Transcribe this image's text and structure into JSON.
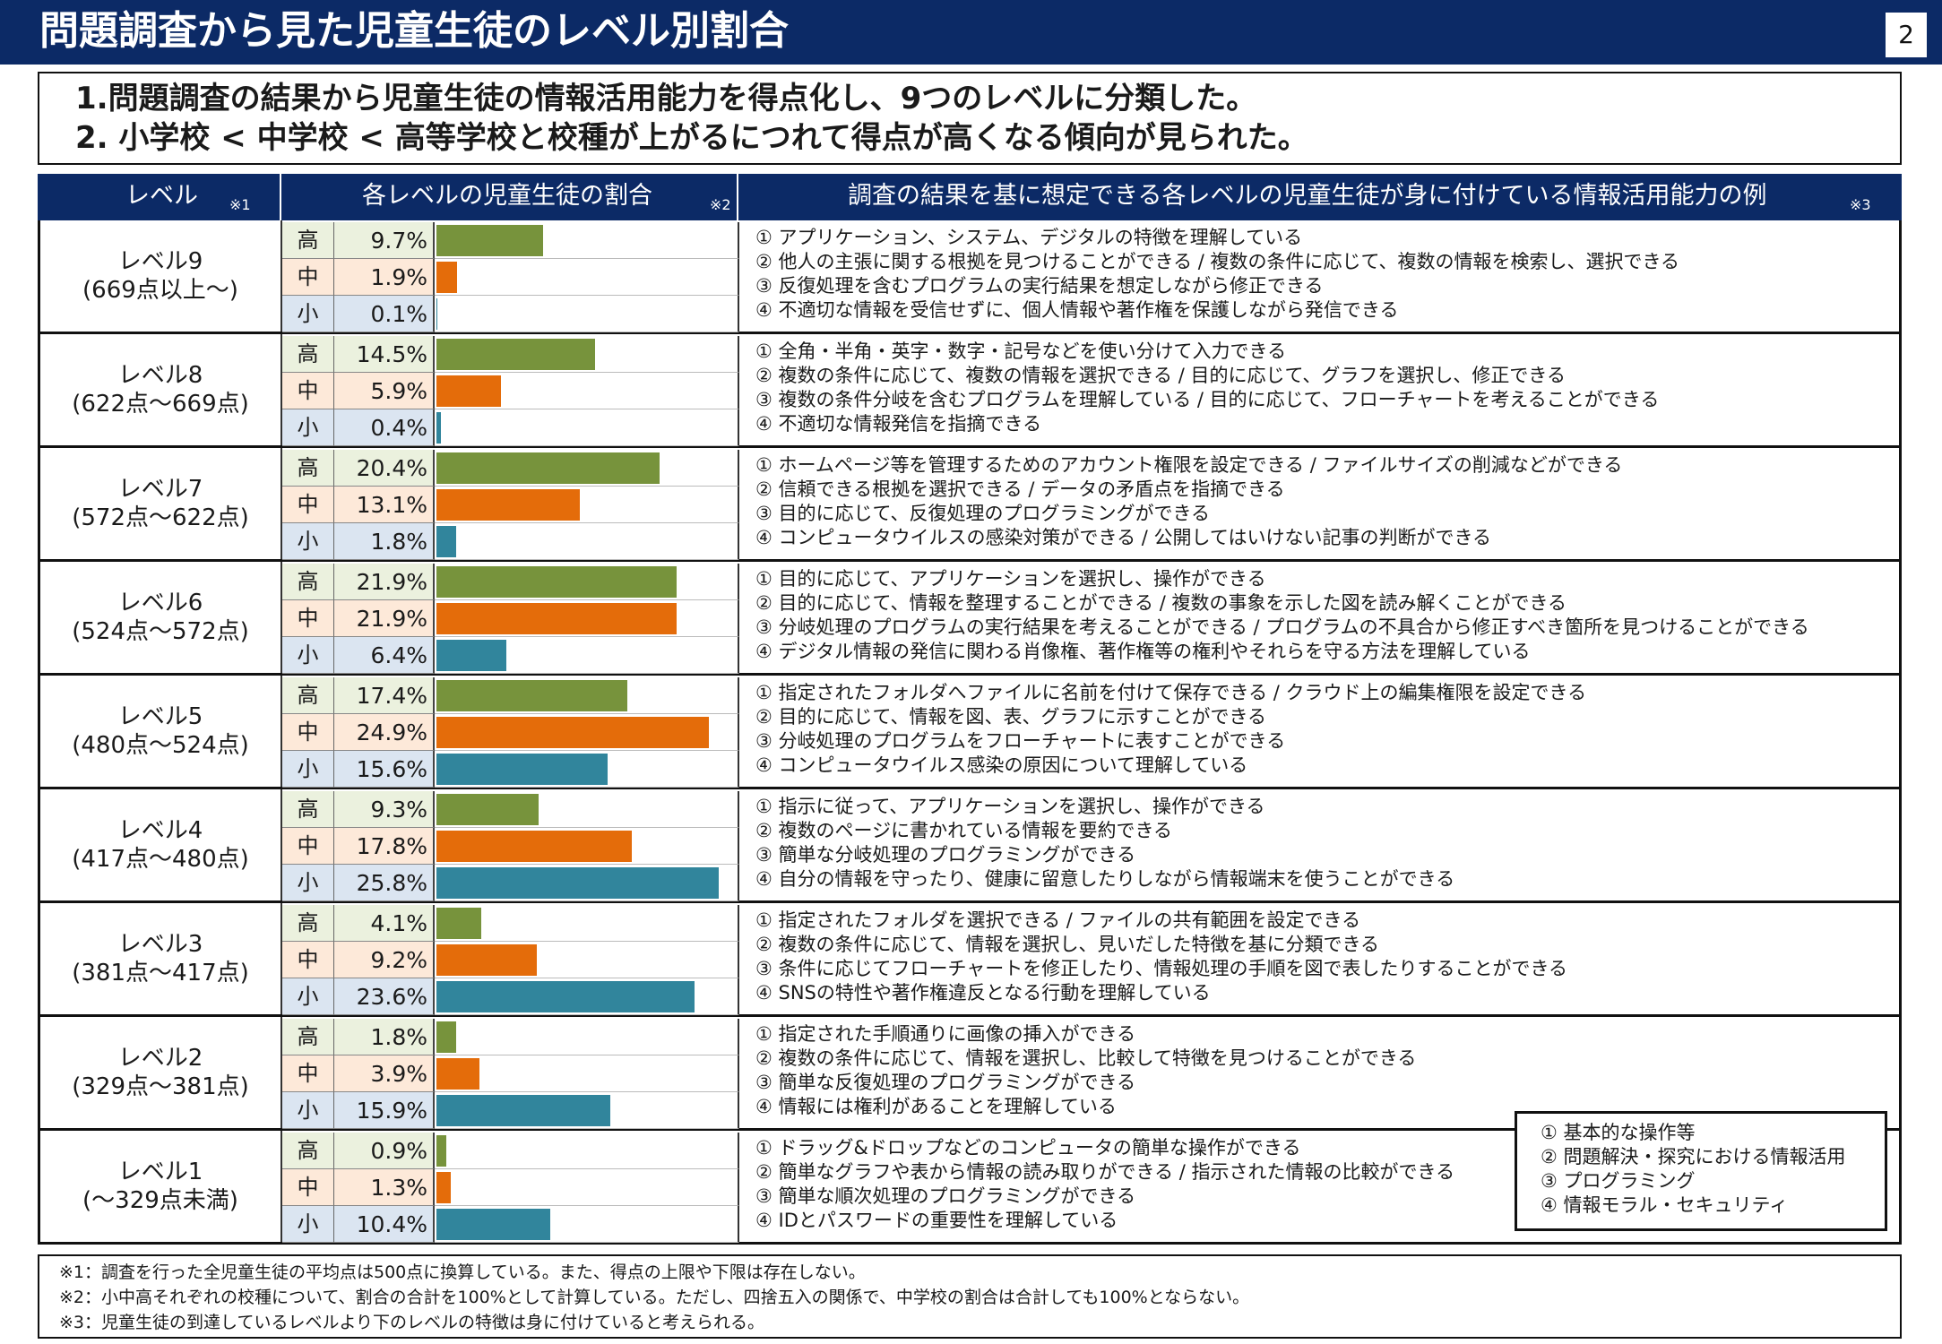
{
  "header": {
    "title": "問題調査から見た児童生徒のレベル別割合",
    "page_number": "2"
  },
  "summary": {
    "line1": "1.問題調査の結果から児童生徒の情報活用能力を得点化し、9つのレベルに分類した。",
    "line2": "2. 小学校 < 中学校 < 高等学校と校種が上がるにつれて得点が高くなる傾向が見られた。"
  },
  "table": {
    "headers": {
      "level": "レベル",
      "level_note": "※1",
      "ratio": "各レベルの児童生徒の割合",
      "ratio_note": "※2",
      "desc": "調査の結果を基に想定できる各レベルの児童生徒が身に付けている情報活用能力の例",
      "desc_note": "※3"
    },
    "school_labels": [
      "高",
      "中",
      "小"
    ],
    "rows": [
      {
        "level": "レベル9",
        "range": "(669点以上～)",
        "pct_text": [
          "9.7%",
          "1.9%",
          "0.1%"
        ],
        "descs": [
          "① アプリケーション、システム、デジタルの特徴を理解している",
          "② 他人の主張に関する根拠を見つけることができる / 複数の条件に応じて、複数の情報を検索し、選択できる",
          "③ 反復処理を含むプログラムの実行結果を想定しながら修正できる",
          "④ 不適切な情報を受信せずに、個人情報や著作権を保護しながら発信できる"
        ]
      },
      {
        "level": "レベル8",
        "range": "(622点～669点)",
        "pct_text": [
          "14.5%",
          "5.9%",
          "0.4%"
        ],
        "descs": [
          "① 全角・半角・英字・数字・記号などを使い分けて入力できる",
          "② 複数の条件に応じて、複数の情報を選択できる / 目的に応じて、グラフを選択し、修正できる",
          "③ 複数の条件分岐を含むプログラムを理解している / 目的に応じて、フローチャートを考えることができる",
          "④ 不適切な情報発信を指摘できる"
        ]
      },
      {
        "level": "レベル7",
        "range": "(572点～622点)",
        "pct_text": [
          "20.4%",
          "13.1%",
          "1.8%"
        ],
        "descs": [
          "① ホームページ等を管理するためのアカウント権限を設定できる / ファイルサイズの削減などができる",
          "② 信頼できる根拠を選択できる / データの矛盾点を指摘できる",
          "③ 目的に応じて、反復処理のプログラミングができる",
          "④ コンピュータウイルスの感染対策ができる / 公開してはいけない記事の判断ができる"
        ]
      },
      {
        "level": "レベル6",
        "range": "(524点～572点)",
        "pct_text": [
          "21.9%",
          "21.9%",
          "6.4%"
        ],
        "descs": [
          "① 目的に応じて、アプリケーションを選択し、操作ができる",
          "② 目的に応じて、情報を整理することができる / 複数の事象を示した図を読み解くことができる",
          "③ 分岐処理のプログラムの実行結果を考えることができる / プログラムの不具合から修正すべき箇所を見つけることができる",
          "④ デジタル情報の発信に関わる肖像権、著作権等の権利やそれらを守る方法を理解している"
        ]
      },
      {
        "level": "レベル5",
        "range": "(480点～524点)",
        "pct_text": [
          "17.4%",
          "24.9%",
          "15.6%"
        ],
        "descs": [
          "① 指定されたフォルダへファイルに名前を付けて保存できる / クラウド上の編集権限を設定できる",
          "② 目的に応じて、情報を図、表、グラフに示すことができる",
          "③ 分岐処理のプログラムをフローチャートに表すことができる",
          "④ コンピュータウイルス感染の原因について理解している"
        ]
      },
      {
        "level": "レベル4",
        "range": "(417点～480点)",
        "pct_text": [
          "9.3%",
          "17.8%",
          "25.8%"
        ],
        "descs": [
          "① 指示に従って、アプリケーションを選択し、操作ができる",
          "② 複数のページに書かれている情報を要約できる",
          "③ 簡単な分岐処理のプログラミングができる",
          "④ 自分の情報を守ったり、健康に留意したりしながら情報端末を使うことができる"
        ]
      },
      {
        "level": "レベル3",
        "range": "(381点～417点)",
        "pct_text": [
          "4.1%",
          "9.2%",
          "23.6%"
        ],
        "descs": [
          "① 指定されたフォルダを選択できる / ファイルの共有範囲を設定できる",
          "② 複数の条件に応じて、情報を選択し、見いだした特徴を基に分類できる",
          "③ 条件に応じてフローチャートを修正したり、情報処理の手順を図で表したりすることができる",
          "④ SNSの特性や著作権違反となる行動を理解している"
        ]
      },
      {
        "level": "レベル2",
        "range": "(329点～381点)",
        "pct_text": [
          "1.8%",
          "3.9%",
          "15.9%"
        ],
        "descs": [
          "① 指定された手順通りに画像の挿入ができる",
          "② 複数の条件に応じて、情報を選択し、比較して特徴を見つけることができる",
          "③ 簡単な反復処理のプログラミングができる",
          "④ 情報には権利があることを理解している"
        ]
      },
      {
        "level": "レベル1",
        "range": "(～329点未満)",
        "pct_text": [
          "0.9%",
          "1.3%",
          "10.4%"
        ],
        "descs": [
          "① ドラッグ&ドロップなどのコンピュータの簡単な操作ができる",
          "② 簡単なグラフや表から情報の読み取りができる / 指示された情報の比較ができる",
          "③ 簡単な順次処理のプログラミングができる",
          "④ IDとパスワードの重要性を理解している"
        ]
      }
    ]
  },
  "legend": {
    "items": [
      "① 基本的な操作等",
      "② 問題解決・探究における情報活用",
      "③ プログラミング",
      "④ 情報モラル・セキュリティ"
    ]
  },
  "notes": {
    "n1": "※1：調査を行った全児童生徒の平均点は500点に換算している。また、得点の上限や下限は存在しない。",
    "n2": "※2：小中高それぞれの校種について、割合の合計を100%として計算している。ただし、四捨五入の関係で、中学校の割合は合計しても100%とならない。",
    "n3": "※3：児童生徒の到達しているレベルより下のレベルの特徴は身に付けていると考えられる。"
  },
  "chart_data": {
    "type": "bar",
    "title": "各レベルの児童生徒の割合",
    "categories": [
      "レベル9",
      "レベル8",
      "レベル7",
      "レベル6",
      "レベル5",
      "レベル4",
      "レベル3",
      "レベル2",
      "レベル1"
    ],
    "series": [
      {
        "name": "高",
        "values": [
          9.7,
          14.5,
          20.4,
          21.9,
          17.4,
          9.3,
          4.1,
          1.8,
          0.9
        ]
      },
      {
        "name": "中",
        "values": [
          1.9,
          5.9,
          13.1,
          21.9,
          24.9,
          17.8,
          9.2,
          3.9,
          1.3
        ]
      },
      {
        "name": "小",
        "values": [
          0.1,
          0.4,
          1.8,
          6.4,
          15.6,
          25.8,
          23.6,
          15.9,
          10.4
        ]
      }
    ],
    "xlim": [
      0,
      27
    ],
    "colors": {
      "high_bar": "#77933c",
      "mid_bar": "#e46c0a",
      "low_bar": "#31859c",
      "high_bg": "#ebf1de",
      "mid_bg": "#fde9d9",
      "low_bg": "#dbe5f1"
    }
  }
}
